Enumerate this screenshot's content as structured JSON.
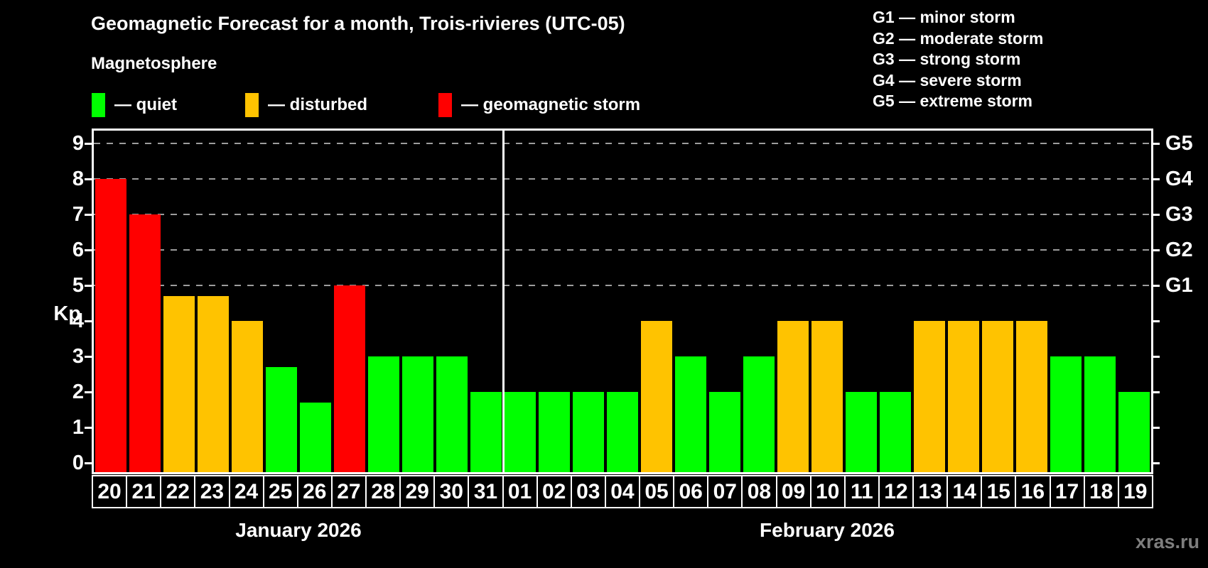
{
  "title": "Geomagnetic Forecast for a month, Trois-rivieres (UTC-05)",
  "subtitle": "Magnetosphere",
  "legend": {
    "items": [
      {
        "status": "quiet",
        "label": "— quiet"
      },
      {
        "status": "disturbed",
        "label": "— disturbed"
      },
      {
        "status": "storm",
        "label": "— geomagnetic storm"
      }
    ]
  },
  "g_legend": {
    "items": [
      "G1 — minor storm",
      "G2 — moderate storm",
      "G3 — strong storm",
      "G4 — severe storm",
      "G5 — extreme storm"
    ]
  },
  "watermark": "xras.ru",
  "chart_data": {
    "type": "bar",
    "ylabel": "Kp",
    "y_ticks": [
      0,
      1,
      2,
      3,
      4,
      5,
      6,
      7,
      8,
      9
    ],
    "ylim": [
      -0.3,
      9.4
    ],
    "grid": "horizontal dashed lines at Kp 5-9 (G1-G5 levels)",
    "legend_position": "top-left and top-right",
    "g_levels": [
      {
        "label": "G5",
        "kp": 9
      },
      {
        "label": "G4",
        "kp": 8
      },
      {
        "label": "G3",
        "kp": 7
      },
      {
        "label": "G2",
        "kp": 6
      },
      {
        "label": "G1",
        "kp": 5
      }
    ],
    "colors": {
      "quiet": "#00FF00",
      "disturbed": "#FFC300",
      "storm": "#FF0000",
      "grid": "#9c9c9c",
      "axis": "#ffffff",
      "background": "#000000"
    },
    "months": [
      {
        "label": "January 2026",
        "days": [
          {
            "day": "20",
            "kp": 8.0,
            "status": "storm"
          },
          {
            "day": "21",
            "kp": 7.0,
            "status": "storm"
          },
          {
            "day": "22",
            "kp": 4.7,
            "status": "disturbed"
          },
          {
            "day": "23",
            "kp": 4.7,
            "status": "disturbed"
          },
          {
            "day": "24",
            "kp": 4.0,
            "status": "disturbed"
          },
          {
            "day": "25",
            "kp": 2.7,
            "status": "quiet"
          },
          {
            "day": "26",
            "kp": 1.7,
            "status": "quiet"
          },
          {
            "day": "27",
            "kp": 5.0,
            "status": "storm"
          },
          {
            "day": "28",
            "kp": 3.0,
            "status": "quiet"
          },
          {
            "day": "29",
            "kp": 3.0,
            "status": "quiet"
          },
          {
            "day": "30",
            "kp": 3.0,
            "status": "quiet"
          },
          {
            "day": "31",
            "kp": 2.0,
            "status": "quiet"
          }
        ]
      },
      {
        "label": "February 2026",
        "days": [
          {
            "day": "01",
            "kp": 2.0,
            "status": "quiet"
          },
          {
            "day": "02",
            "kp": 2.0,
            "status": "quiet"
          },
          {
            "day": "03",
            "kp": 2.0,
            "status": "quiet"
          },
          {
            "day": "04",
            "kp": 2.0,
            "status": "quiet"
          },
          {
            "day": "05",
            "kp": 4.0,
            "status": "disturbed"
          },
          {
            "day": "06",
            "kp": 3.0,
            "status": "quiet"
          },
          {
            "day": "07",
            "kp": 2.0,
            "status": "quiet"
          },
          {
            "day": "08",
            "kp": 3.0,
            "status": "quiet"
          },
          {
            "day": "09",
            "kp": 4.0,
            "status": "disturbed"
          },
          {
            "day": "10",
            "kp": 4.0,
            "status": "disturbed"
          },
          {
            "day": "11",
            "kp": 2.0,
            "status": "quiet"
          },
          {
            "day": "12",
            "kp": 2.0,
            "status": "quiet"
          },
          {
            "day": "13",
            "kp": 4.0,
            "status": "disturbed"
          },
          {
            "day": "14",
            "kp": 4.0,
            "status": "disturbed"
          },
          {
            "day": "15",
            "kp": 4.0,
            "status": "disturbed"
          },
          {
            "day": "16",
            "kp": 4.0,
            "status": "disturbed"
          },
          {
            "day": "17",
            "kp": 3.0,
            "status": "quiet"
          },
          {
            "day": "18",
            "kp": 3.0,
            "status": "quiet"
          },
          {
            "day": "19",
            "kp": 2.0,
            "status": "quiet"
          }
        ]
      }
    ]
  }
}
